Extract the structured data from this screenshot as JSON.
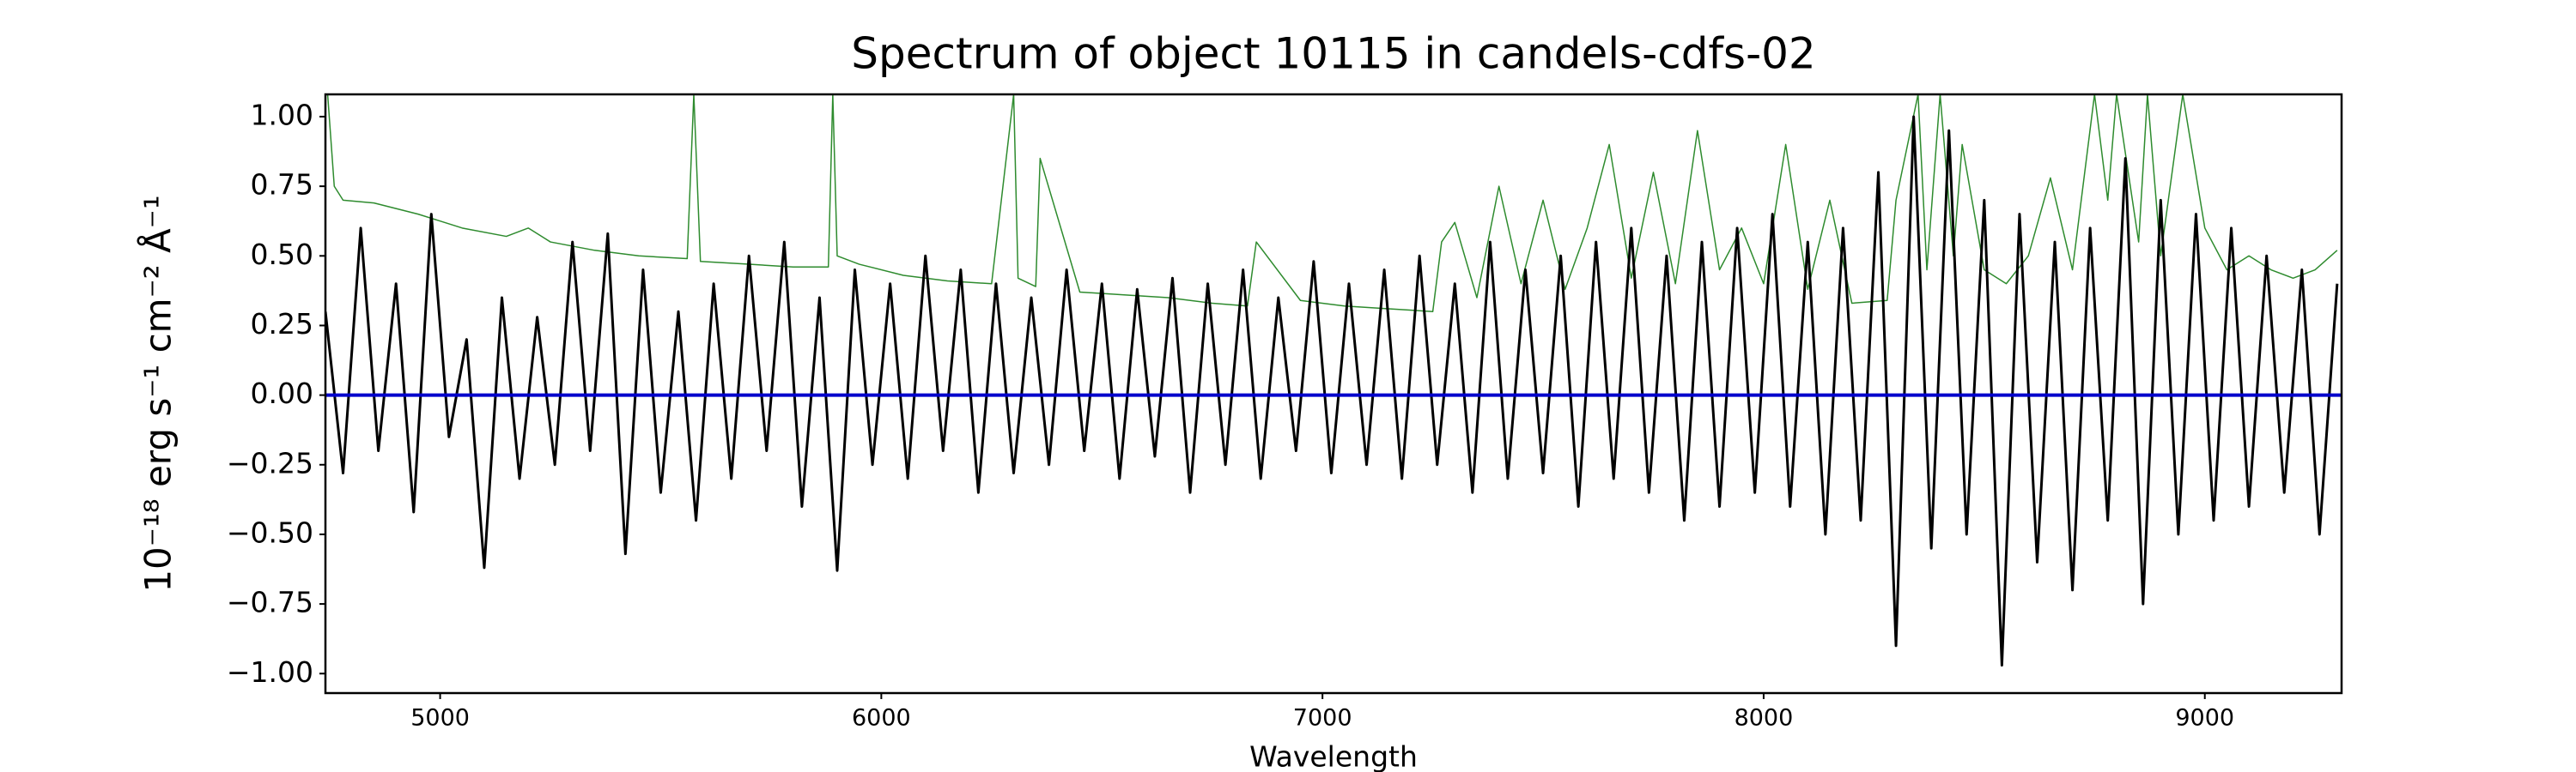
{
  "chart_data": {
    "type": "line",
    "title": "Spectrum of object 10115 in candels-cdfs-02",
    "xlabel": "Wavelength",
    "ylabel": "10⁻¹⁸ erg s⁻¹ cm⁻² Å⁻¹",
    "xlim": [
      4740,
      9310
    ],
    "ylim": [
      -1.07,
      1.08
    ],
    "xticks": [
      5000,
      6000,
      7000,
      8000,
      9000
    ],
    "yticks": [
      {
        "value": -1,
        "label": "−1.00"
      },
      {
        "value": -0.75,
        "label": "−0.75"
      },
      {
        "value": -0.5,
        "label": "−0.50"
      },
      {
        "value": -0.25,
        "label": "−0.25"
      },
      {
        "value": 0,
        "label": "0.00"
      },
      {
        "value": 0.25,
        "label": "0.25"
      },
      {
        "value": 0.5,
        "label": "0.50"
      },
      {
        "value": 0.75,
        "label": "0.75"
      },
      {
        "value": 1,
        "label": "1.00"
      }
    ],
    "grid": false,
    "series": [
      {
        "color": "#2e8b2e",
        "x": [
          4745,
          4760,
          4780,
          4850,
          4950,
          5050,
          5150,
          5200,
          5250,
          5350,
          5450,
          5560,
          5575,
          5590,
          5700,
          5800,
          5880,
          5890,
          5900,
          5950,
          6050,
          6150,
          6250,
          6300,
          6310,
          6350,
          6360,
          6450,
          6550,
          6650,
          6750,
          6830,
          6850,
          6950,
          7050,
          7150,
          7250,
          7270,
          7300,
          7350,
          7400,
          7450,
          7500,
          7550,
          7600,
          7650,
          7700,
          7750,
          7800,
          7850,
          7900,
          7950,
          8000,
          8050,
          8100,
          8150,
          8200,
          8280,
          8300,
          8350,
          8370,
          8400,
          8430,
          8450,
          8500,
          8550,
          8600,
          8650,
          8700,
          8750,
          8780,
          8800,
          8850,
          8870,
          8900,
          8950,
          9000,
          9050,
          9100,
          9150,
          9200,
          9250,
          9300
        ],
        "values": [
          1.08,
          0.75,
          0.7,
          0.69,
          0.65,
          0.6,
          0.57,
          0.6,
          0.55,
          0.52,
          0.5,
          0.49,
          1.08,
          0.48,
          0.47,
          0.46,
          0.46,
          1.08,
          0.5,
          0.47,
          0.43,
          0.41,
          0.4,
          1.08,
          0.42,
          0.39,
          0.85,
          0.37,
          0.36,
          0.35,
          0.33,
          0.32,
          0.55,
          0.34,
          0.32,
          0.31,
          0.3,
          0.55,
          0.62,
          0.35,
          0.75,
          0.4,
          0.7,
          0.38,
          0.6,
          0.9,
          0.42,
          0.8,
          0.4,
          0.95,
          0.45,
          0.6,
          0.4,
          0.9,
          0.38,
          0.7,
          0.33,
          0.34,
          0.7,
          1.08,
          0.45,
          1.08,
          0.5,
          0.9,
          0.45,
          0.4,
          0.5,
          0.78,
          0.45,
          1.08,
          0.7,
          1.08,
          0.55,
          1.08,
          0.5,
          1.08,
          0.6,
          0.45,
          0.5,
          0.45,
          0.42,
          0.45,
          0.52
        ]
      },
      {
        "color": "#000000",
        "x": [
          4740,
          4780,
          4820,
          4860,
          4900,
          4940,
          4980,
          5020,
          5060,
          5100,
          5140,
          5180,
          5220,
          5260,
          5300,
          5340,
          5380,
          5420,
          5460,
          5500,
          5540,
          5580,
          5620,
          5660,
          5700,
          5740,
          5780,
          5820,
          5860,
          5900,
          5940,
          5980,
          6020,
          6060,
          6100,
          6140,
          6180,
          6220,
          6260,
          6300,
          6340,
          6380,
          6420,
          6460,
          6500,
          6540,
          6580,
          6620,
          6660,
          6700,
          6740,
          6780,
          6820,
          6860,
          6900,
          6940,
          6980,
          7020,
          7060,
          7100,
          7140,
          7180,
          7220,
          7260,
          7300,
          7340,
          7380,
          7420,
          7460,
          7500,
          7540,
          7580,
          7620,
          7660,
          7700,
          7740,
          7780,
          7820,
          7860,
          7900,
          7940,
          7980,
          8020,
          8060,
          8100,
          8140,
          8180,
          8220,
          8260,
          8300,
          8340,
          8380,
          8420,
          8460,
          8500,
          8540,
          8580,
          8620,
          8660,
          8700,
          8740,
          8780,
          8820,
          8860,
          8900,
          8940,
          8980,
          9020,
          9060,
          9100,
          9140,
          9180,
          9220,
          9260,
          9300
        ],
        "values": [
          0.3,
          -0.28,
          0.6,
          -0.2,
          0.4,
          -0.42,
          0.65,
          -0.15,
          0.2,
          -0.62,
          0.35,
          -0.3,
          0.28,
          -0.25,
          0.55,
          -0.2,
          0.58,
          -0.57,
          0.45,
          -0.35,
          0.3,
          -0.45,
          0.4,
          -0.3,
          0.5,
          -0.2,
          0.55,
          -0.4,
          0.35,
          -0.63,
          0.45,
          -0.25,
          0.4,
          -0.3,
          0.5,
          -0.2,
          0.45,
          -0.35,
          0.4,
          -0.28,
          0.35,
          -0.25,
          0.45,
          -0.2,
          0.4,
          -0.3,
          0.38,
          -0.22,
          0.42,
          -0.35,
          0.4,
          -0.25,
          0.45,
          -0.3,
          0.35,
          -0.2,
          0.48,
          -0.28,
          0.4,
          -0.25,
          0.45,
          -0.3,
          0.5,
          -0.25,
          0.4,
          -0.35,
          0.55,
          -0.3,
          0.45,
          -0.28,
          0.5,
          -0.4,
          0.55,
          -0.3,
          0.6,
          -0.35,
          0.5,
          -0.45,
          0.55,
          -0.4,
          0.6,
          -0.35,
          0.65,
          -0.4,
          0.55,
          -0.5,
          0.6,
          -0.45,
          0.8,
          -0.9,
          1.0,
          -0.55,
          0.95,
          -0.5,
          0.7,
          -0.97,
          0.65,
          -0.6,
          0.55,
          -0.7,
          0.6,
          -0.45,
          0.85,
          -0.75,
          0.7,
          -0.5,
          0.65,
          -0.45,
          0.6,
          -0.4,
          0.5,
          -0.35,
          0.45,
          -0.5,
          0.4
        ]
      },
      {
        "color": "#0000cc",
        "x": [
          4740,
          9310
        ],
        "values": [
          0,
          0
        ]
      }
    ]
  }
}
